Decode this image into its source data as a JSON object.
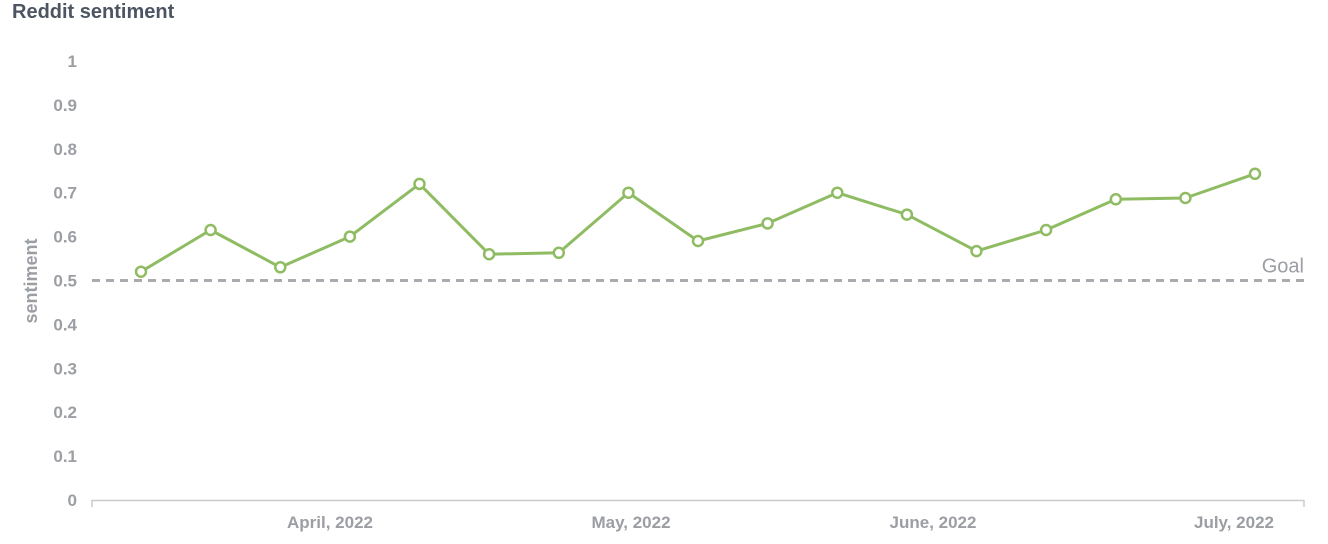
{
  "chart_data": {
    "type": "line",
    "title": "Reddit sentiment",
    "ylabel": "sentiment",
    "xlabel": "",
    "ylim": [
      0,
      1
    ],
    "yticks": [
      "0",
      "0.1",
      "0.2",
      "0.3",
      "0.4",
      "0.5",
      "0.6",
      "0.7",
      "0.8",
      "0.9",
      "1"
    ],
    "xticks": [
      "April, 2022",
      "May, 2022",
      "June, 2022",
      "July, 2022"
    ],
    "grid": false,
    "legend": "none",
    "series": [
      {
        "values": [
          0.52,
          0.615,
          0.53,
          0.6,
          0.72,
          0.56,
          0.563,
          0.7,
          0.59,
          0.63,
          0.7,
          0.65,
          0.567,
          0.615,
          0.685,
          0.688,
          0.743
        ],
        "color": "#8fbc63"
      }
    ],
    "reference_line": {
      "label": "Goal",
      "value": 0.5,
      "style": "dashed",
      "color": "#a8abaf"
    }
  }
}
